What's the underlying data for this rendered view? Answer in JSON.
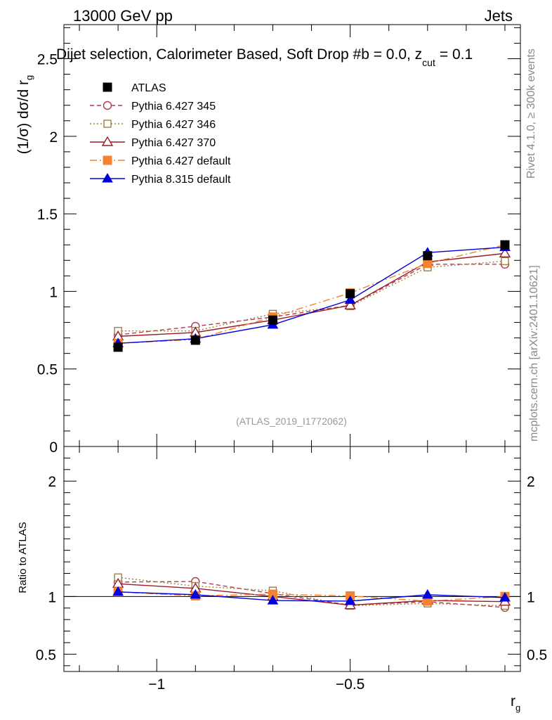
{
  "header": {
    "left": "13000 GeV pp",
    "right": "Jets"
  },
  "side_labels": {
    "rivet": "Rivet 4.1.0, ≥ 300k events",
    "mcplots": "mcplots.cern.ch [arXiv:2401.10621]"
  },
  "chart_data": {
    "type": "line",
    "title": "Dijet selection, Calorimeter Based, Soft Drop #b = 0.0, z",
    "title_cut_sub": "cut",
    "title_suffix": "= 0.1",
    "watermark": "(ATLAS_2019_I1772062)",
    "ylabel_main": "(1/σ) dσ/d r",
    "ylabel_main_sub": "g",
    "ylabel_ratio": "Ratio to ATLAS",
    "xlabel": "r",
    "xlabel_sub": "g",
    "xlim": [
      -1.24,
      -0.06
    ],
    "ylim_main": [
      0,
      2.72
    ],
    "ylim_ratio": [
      0.35,
      2.3
    ],
    "x_ticks": [
      {
        "v": -1,
        "label": "−1"
      },
      {
        "v": -0.5,
        "label": "−0.5"
      }
    ],
    "y_ticks_main": [
      {
        "v": 0,
        "label": "0"
      },
      {
        "v": 0.5,
        "label": "0.5"
      },
      {
        "v": 1,
        "label": "1"
      },
      {
        "v": 1.5,
        "label": "1.5"
      },
      {
        "v": 2,
        "label": "2"
      },
      {
        "v": 2.5,
        "label": "2.5"
      }
    ],
    "y_ticks_ratio": [
      {
        "v": 0.5,
        "label": "0.5"
      },
      {
        "v": 1,
        "label": "1"
      },
      {
        "v": 2,
        "label": "2"
      }
    ],
    "x": [
      -1.1,
      -0.9,
      -0.7,
      -0.5,
      -0.3,
      -0.1
    ],
    "series": [
      {
        "name": "ATLAS",
        "color": "#000000",
        "marker": "square-filled",
        "line": "none",
        "values": [
          0.64,
          0.685,
          0.815,
          0.985,
          1.23,
          1.3
        ],
        "ratio": [
          1.0,
          1.0,
          1.0,
          1.0,
          1.0,
          1.0
        ]
      },
      {
        "name": "Pythia 6.427 345",
        "color": "#b2384e",
        "marker": "circle-open",
        "line": "dashed",
        "values": [
          0.72,
          0.775,
          0.835,
          0.91,
          1.175,
          1.175
        ],
        "ratio": [
          1.125,
          1.13,
          1.025,
          0.925,
          0.955,
          0.905
        ]
      },
      {
        "name": "Pythia 6.427 346",
        "color": "#a08040",
        "marker": "square-open",
        "line": "dotted",
        "values": [
          0.745,
          0.745,
          0.855,
          0.905,
          1.155,
          1.195
        ],
        "ratio": [
          1.165,
          1.09,
          1.05,
          0.92,
          0.94,
          0.92
        ]
      },
      {
        "name": "Pythia 6.427 370",
        "color": "#9b1b2a",
        "marker": "triangle-open",
        "line": "solid",
        "values": [
          0.71,
          0.735,
          0.815,
          0.91,
          1.19,
          1.245
        ],
        "ratio": [
          1.11,
          1.07,
          1.0,
          0.925,
          0.965,
          0.955
        ]
      },
      {
        "name": "Pythia 6.427 default",
        "color": "#f58231",
        "marker": "square-filled",
        "line": "dashdot",
        "values": [
          0.665,
          0.69,
          0.835,
          0.99,
          1.18,
          1.3
        ],
        "ratio": [
          1.04,
          1.005,
          1.02,
          1.005,
          0.96,
          1.0
        ]
      },
      {
        "name": "Pythia 8.315 default",
        "color": "#0000dd",
        "marker": "triangle-filled",
        "line": "solid",
        "values": [
          0.665,
          0.695,
          0.785,
          0.945,
          1.25,
          1.285
        ],
        "ratio": [
          1.04,
          1.015,
          0.965,
          0.96,
          1.015,
          0.99
        ]
      }
    ]
  }
}
